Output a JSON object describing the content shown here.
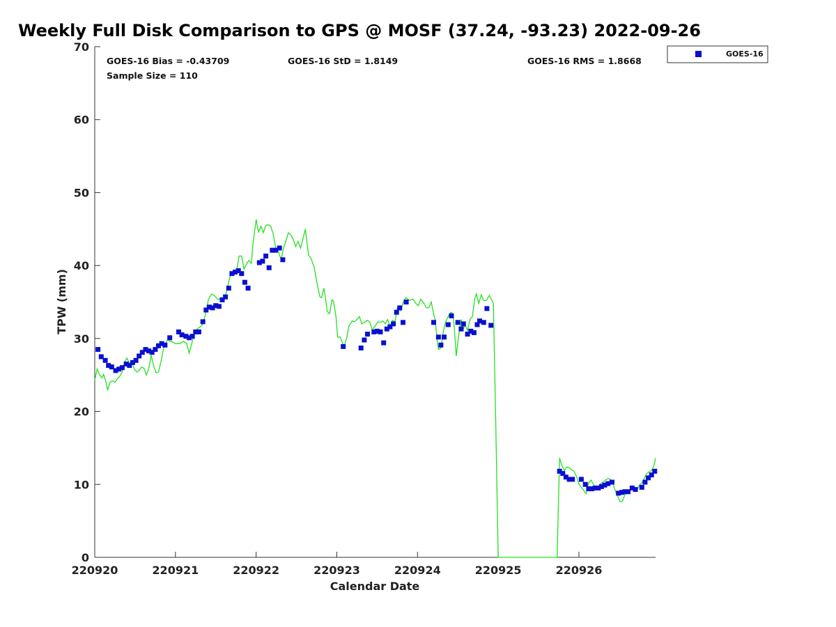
{
  "chart_data": {
    "type": "scatter",
    "title": "Weekly Full Disk Comparison to GPS @ MOSF (37.24, -93.23) 2022-09-26",
    "xlabel": "Calendar Date",
    "ylabel": "TPW (mm)",
    "xlim": [
      0,
      6.95
    ],
    "ylim": [
      0,
      70
    ],
    "x_ticks": [
      0,
      1,
      2,
      3,
      4,
      5,
      6
    ],
    "x_tick_labels": [
      "220920",
      "220921",
      "220922",
      "220923",
      "220924",
      "220925",
      "220926"
    ],
    "y_ticks": [
      0,
      10,
      20,
      30,
      40,
      50,
      60,
      70
    ],
    "y_tick_labels": [
      "0",
      "10",
      "20",
      "30",
      "40",
      "50",
      "60",
      "70"
    ],
    "grid": false,
    "legend_position": "top-right",
    "stats": {
      "bias": "GOES-16 Bias = -0.43709",
      "std": "GOES-16 StD = 1.8149",
      "rms": "GOES-16 RMS = 1.8668",
      "sample": "Sample Size = 110"
    },
    "colors": {
      "goes": "#0a10d0",
      "gps": "#22e022"
    },
    "series": [
      {
        "name": "GOES-16",
        "marker": "square",
        "points": [
          [
            0.04,
            28.5
          ],
          [
            0.08,
            27.5
          ],
          [
            0.13,
            27.0
          ],
          [
            0.17,
            26.3
          ],
          [
            0.21,
            26.1
          ],
          [
            0.26,
            25.6
          ],
          [
            0.3,
            25.8
          ],
          [
            0.34,
            26.0
          ],
          [
            0.39,
            26.5
          ],
          [
            0.43,
            26.3
          ],
          [
            0.47,
            26.7
          ],
          [
            0.51,
            27.0
          ],
          [
            0.55,
            27.6
          ],
          [
            0.59,
            28.1
          ],
          [
            0.63,
            28.5
          ],
          [
            0.67,
            28.3
          ],
          [
            0.71,
            28.1
          ],
          [
            0.75,
            28.5
          ],
          [
            0.79,
            29.0
          ],
          [
            0.83,
            29.3
          ],
          [
            0.87,
            29.1
          ],
          [
            0.93,
            30.1
          ],
          [
            1.04,
            30.9
          ],
          [
            1.08,
            30.5
          ],
          [
            1.13,
            30.3
          ],
          [
            1.17,
            30.1
          ],
          [
            1.21,
            30.3
          ],
          [
            1.25,
            30.9
          ],
          [
            1.29,
            30.9
          ],
          [
            1.34,
            32.3
          ],
          [
            1.38,
            33.9
          ],
          [
            1.42,
            34.3
          ],
          [
            1.46,
            34.2
          ],
          [
            1.5,
            34.5
          ],
          [
            1.54,
            34.4
          ],
          [
            1.58,
            35.3
          ],
          [
            1.62,
            35.7
          ],
          [
            1.66,
            36.9
          ],
          [
            1.7,
            38.9
          ],
          [
            1.74,
            39.1
          ],
          [
            1.78,
            39.3
          ],
          [
            1.82,
            38.9
          ],
          [
            1.86,
            37.7
          ],
          [
            1.9,
            36.9
          ],
          [
            2.04,
            40.4
          ],
          [
            2.08,
            40.6
          ],
          [
            2.12,
            41.3
          ],
          [
            2.16,
            39.7
          ],
          [
            2.2,
            42.1
          ],
          [
            2.24,
            42.1
          ],
          [
            2.29,
            42.4
          ],
          [
            2.33,
            40.8
          ],
          [
            3.08,
            28.9
          ],
          [
            3.3,
            28.7
          ],
          [
            3.34,
            29.8
          ],
          [
            3.38,
            30.6
          ],
          [
            3.46,
            30.9
          ],
          [
            3.5,
            31.0
          ],
          [
            3.54,
            30.9
          ],
          [
            3.58,
            29.4
          ],
          [
            3.62,
            31.3
          ],
          [
            3.66,
            31.6
          ],
          [
            3.7,
            32.0
          ],
          [
            3.74,
            33.6
          ],
          [
            3.78,
            34.2
          ],
          [
            3.82,
            32.2
          ],
          [
            3.86,
            35.0
          ],
          [
            4.2,
            32.2
          ],
          [
            4.26,
            30.2
          ],
          [
            4.29,
            29.1
          ],
          [
            4.33,
            30.2
          ],
          [
            4.38,
            31.9
          ],
          [
            4.42,
            33.1
          ],
          [
            4.5,
            32.2
          ],
          [
            4.54,
            31.3
          ],
          [
            4.57,
            32.0
          ],
          [
            4.62,
            30.6
          ],
          [
            4.66,
            31.0
          ],
          [
            4.7,
            30.8
          ],
          [
            4.74,
            31.9
          ],
          [
            4.77,
            32.4
          ],
          [
            4.82,
            32.2
          ],
          [
            4.86,
            34.1
          ],
          [
            4.91,
            31.8
          ],
          [
            5.76,
            11.8
          ],
          [
            5.8,
            11.5
          ],
          [
            5.84,
            11.0
          ],
          [
            5.88,
            10.7
          ],
          [
            5.92,
            10.7
          ],
          [
            6.03,
            10.7
          ],
          [
            6.08,
            10.0
          ],
          [
            6.12,
            9.4
          ],
          [
            6.16,
            9.4
          ],
          [
            6.2,
            9.5
          ],
          [
            6.24,
            9.5
          ],
          [
            6.28,
            9.7
          ],
          [
            6.32,
            9.9
          ],
          [
            6.36,
            10.1
          ],
          [
            6.41,
            10.3
          ],
          [
            6.49,
            8.8
          ],
          [
            6.53,
            8.9
          ],
          [
            6.57,
            9.0
          ],
          [
            6.61,
            9.0
          ],
          [
            6.66,
            9.5
          ],
          [
            6.7,
            9.3
          ],
          [
            6.78,
            9.6
          ],
          [
            6.82,
            10.3
          ],
          [
            6.86,
            10.9
          ],
          [
            6.9,
            11.3
          ],
          [
            6.94,
            11.8
          ]
        ]
      },
      {
        "name": "",
        "marker": "line",
        "points": [
          [
            0.0,
            24.3
          ],
          [
            0.03,
            25.8
          ],
          [
            0.06,
            25.0
          ],
          [
            0.09,
            24.6
          ],
          [
            0.11,
            25.1
          ],
          [
            0.14,
            24.0
          ],
          [
            0.16,
            22.9
          ],
          [
            0.19,
            24.0
          ],
          [
            0.22,
            24.2
          ],
          [
            0.25,
            24.0
          ],
          [
            0.28,
            24.5
          ],
          [
            0.31,
            24.8
          ],
          [
            0.34,
            25.4
          ],
          [
            0.37,
            26.8
          ],
          [
            0.4,
            27.3
          ],
          [
            0.43,
            26.6
          ],
          [
            0.46,
            26.8
          ],
          [
            0.49,
            25.8
          ],
          [
            0.52,
            25.4
          ],
          [
            0.55,
            25.6
          ],
          [
            0.58,
            26.1
          ],
          [
            0.61,
            25.9
          ],
          [
            0.64,
            25.0
          ],
          [
            0.67,
            25.9
          ],
          [
            0.7,
            27.7
          ],
          [
            0.73,
            26.2
          ],
          [
            0.76,
            25.3
          ],
          [
            0.79,
            25.4
          ],
          [
            0.82,
            26.8
          ],
          [
            0.86,
            29.0
          ],
          [
            0.9,
            29.8
          ],
          [
            0.95,
            29.6
          ],
          [
            1.0,
            29.3
          ],
          [
            1.05,
            29.3
          ],
          [
            1.1,
            29.6
          ],
          [
            1.14,
            29.3
          ],
          [
            1.17,
            28.0
          ],
          [
            1.2,
            29.2
          ],
          [
            1.24,
            31.0
          ],
          [
            1.28,
            31.4
          ],
          [
            1.33,
            31.8
          ],
          [
            1.37,
            33.2
          ],
          [
            1.41,
            35.4
          ],
          [
            1.45,
            36.1
          ],
          [
            1.49,
            35.8
          ],
          [
            1.53,
            35.3
          ],
          [
            1.57,
            35.6
          ],
          [
            1.61,
            35.4
          ],
          [
            1.64,
            36.8
          ],
          [
            1.68,
            38.7
          ],
          [
            1.72,
            39.1
          ],
          [
            1.76,
            39.5
          ],
          [
            1.79,
            41.3
          ],
          [
            1.82,
            41.3
          ],
          [
            1.85,
            39.5
          ],
          [
            1.88,
            40.2
          ],
          [
            1.91,
            40.7
          ],
          [
            1.94,
            40.3
          ],
          [
            1.96,
            42.9
          ],
          [
            2.0,
            46.3
          ],
          [
            2.03,
            44.6
          ],
          [
            2.06,
            45.4
          ],
          [
            2.09,
            44.5
          ],
          [
            2.12,
            45.5
          ],
          [
            2.15,
            45.6
          ],
          [
            2.18,
            45.4
          ],
          [
            2.21,
            44.4
          ],
          [
            2.24,
            42.5
          ],
          [
            2.27,
            42.1
          ],
          [
            2.31,
            40.8
          ],
          [
            2.34,
            42.4
          ],
          [
            2.37,
            43.4
          ],
          [
            2.4,
            44.5
          ],
          [
            2.43,
            44.2
          ],
          [
            2.46,
            43.6
          ],
          [
            2.49,
            42.6
          ],
          [
            2.52,
            43.3
          ],
          [
            2.55,
            42.4
          ],
          [
            2.58,
            43.6
          ],
          [
            2.61,
            45.0
          ],
          [
            2.63,
            43.2
          ],
          [
            2.65,
            41.4
          ],
          [
            2.68,
            41.0
          ],
          [
            2.72,
            39.7
          ],
          [
            2.76,
            37.3
          ],
          [
            2.79,
            35.7
          ],
          [
            2.81,
            35.6
          ],
          [
            2.84,
            36.9
          ],
          [
            2.86,
            35.5
          ],
          [
            2.88,
            33.7
          ],
          [
            2.91,
            33.4
          ],
          [
            2.94,
            35.3
          ],
          [
            2.96,
            35.1
          ],
          [
            2.99,
            33.0
          ],
          [
            3.01,
            30.2
          ],
          [
            3.04,
            30.2
          ],
          [
            3.07,
            29.4
          ],
          [
            3.09,
            28.9
          ],
          [
            3.12,
            30.0
          ],
          [
            3.15,
            31.7
          ],
          [
            3.19,
            32.4
          ],
          [
            3.22,
            32.3
          ],
          [
            3.25,
            32.6
          ],
          [
            3.28,
            33.0
          ],
          [
            3.31,
            32.0
          ],
          [
            3.34,
            32.2
          ],
          [
            3.38,
            32.5
          ],
          [
            3.41,
            32.2
          ],
          [
            3.44,
            31.2
          ],
          [
            3.48,
            31.8
          ],
          [
            3.51,
            32.3
          ],
          [
            3.54,
            32.2
          ],
          [
            3.57,
            32.4
          ],
          [
            3.6,
            32.0
          ],
          [
            3.63,
            32.6
          ],
          [
            3.66,
            31.6
          ],
          [
            3.69,
            32.5
          ],
          [
            3.72,
            32.3
          ],
          [
            3.75,
            34.2
          ],
          [
            3.79,
            33.8
          ],
          [
            3.83,
            35.2
          ],
          [
            3.86,
            35.6
          ],
          [
            3.9,
            35.2
          ],
          [
            3.94,
            35.4
          ],
          [
            3.98,
            34.8
          ],
          [
            4.01,
            34.5
          ],
          [
            4.04,
            35.4
          ],
          [
            4.08,
            34.8
          ],
          [
            4.11,
            34.2
          ],
          [
            4.14,
            34.2
          ],
          [
            4.17,
            35.0
          ],
          [
            4.2,
            33.3
          ],
          [
            4.22,
            32.5
          ],
          [
            4.24,
            30.0
          ],
          [
            4.26,
            28.5
          ],
          [
            4.29,
            28.7
          ],
          [
            4.32,
            31.0
          ],
          [
            4.35,
            32.3
          ],
          [
            4.38,
            33.0
          ],
          [
            4.41,
            33.6
          ],
          [
            4.44,
            33.4
          ],
          [
            4.46,
            30.8
          ],
          [
            4.48,
            27.6
          ],
          [
            4.51,
            30.4
          ],
          [
            4.54,
            32.6
          ],
          [
            4.57,
            31.3
          ],
          [
            4.59,
            31.9
          ],
          [
            4.62,
            31.1
          ],
          [
            4.65,
            32.6
          ],
          [
            4.68,
            33.0
          ],
          [
            4.71,
            35.5
          ],
          [
            4.73,
            36.1
          ],
          [
            4.76,
            34.8
          ],
          [
            4.79,
            36.0
          ],
          [
            4.82,
            35.2
          ],
          [
            4.85,
            35.2
          ],
          [
            4.89,
            35.9
          ],
          [
            4.92,
            35.3
          ],
          [
            4.94,
            34.8
          ],
          [
            4.97,
            18.0
          ],
          [
            5.0,
            0.0
          ],
          [
            5.73,
            0.0
          ],
          [
            5.76,
            13.6
          ],
          [
            5.79,
            12.6
          ],
          [
            5.82,
            11.9
          ],
          [
            5.85,
            12.4
          ],
          [
            5.88,
            12.3
          ],
          [
            5.91,
            12.0
          ],
          [
            5.94,
            11.8
          ],
          [
            5.97,
            11.1
          ],
          [
            6.0,
            10.0
          ],
          [
            6.03,
            9.6
          ],
          [
            6.06,
            9.2
          ],
          [
            6.09,
            8.7
          ],
          [
            6.12,
            10.2
          ],
          [
            6.15,
            10.6
          ],
          [
            6.18,
            10.0
          ],
          [
            6.21,
            9.5
          ],
          [
            6.24,
            9.6
          ],
          [
            6.27,
            10.1
          ],
          [
            6.3,
            10.3
          ],
          [
            6.33,
            10.6
          ],
          [
            6.36,
            10.8
          ],
          [
            6.39,
            10.7
          ],
          [
            6.42,
            10.2
          ],
          [
            6.45,
            9.1
          ],
          [
            6.48,
            8.4
          ],
          [
            6.51,
            7.6
          ],
          [
            6.54,
            7.7
          ],
          [
            6.57,
            8.6
          ],
          [
            6.6,
            9.2
          ],
          [
            6.63,
            9.3
          ],
          [
            6.66,
            9.4
          ],
          [
            6.69,
            9.1
          ],
          [
            6.72,
            9.2
          ],
          [
            6.75,
            9.9
          ],
          [
            6.78,
            10.2
          ],
          [
            6.81,
            10.8
          ],
          [
            6.84,
            11.5
          ],
          [
            6.87,
            11.7
          ],
          [
            6.9,
            11.9
          ],
          [
            6.93,
            12.6
          ],
          [
            6.95,
            13.6
          ]
        ]
      }
    ]
  }
}
